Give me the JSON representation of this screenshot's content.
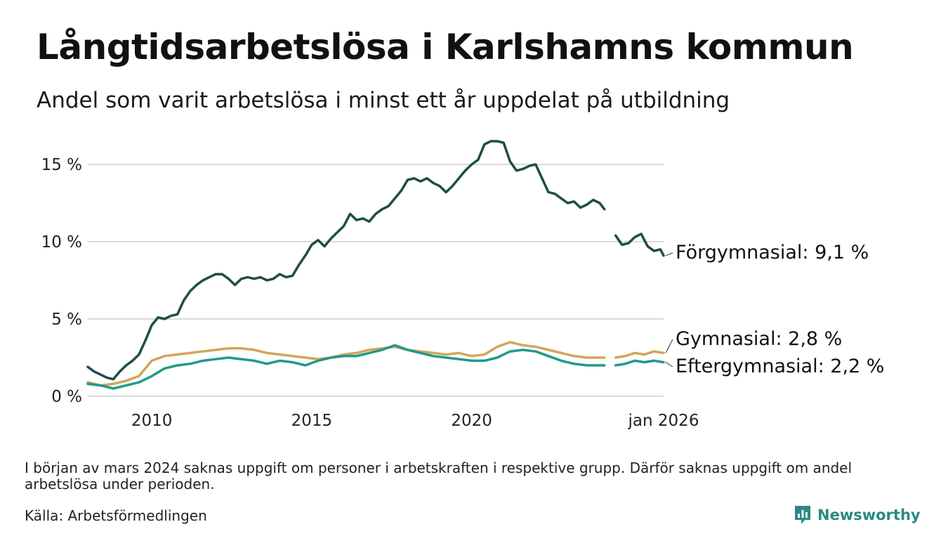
{
  "title": "Långtidsarbetslösa i Karlshamns kommun",
  "subtitle": "Andel som varit arbetslösa i minst ett år uppdelat på utbildning",
  "note": "I början av mars 2024 saknas uppgift om personer i arbetskraften i respektive grupp. Därför saknas uppgift om andel arbetslösa under perioden.",
  "source": "Källa: Arbetsförmedlingen",
  "brand": {
    "name": "Newsworthy",
    "icon": "newsworthy-logo-icon",
    "color": "#2a8a83"
  },
  "chart_data": {
    "type": "line",
    "title": "Långtidsarbetslösa i Karlshamns kommun",
    "xlabel": "",
    "ylabel": "",
    "x_range": [
      2008.0,
      2026.0
    ],
    "ylim": [
      0,
      17
    ],
    "x_ticks": [
      {
        "value": 2010,
        "label": "2010"
      },
      {
        "value": 2015,
        "label": "2015"
      },
      {
        "value": 2020,
        "label": "2020"
      },
      {
        "value": 2026,
        "label": "jan 2026"
      }
    ],
    "y_ticks": [
      {
        "value": 0,
        "label": "0 %"
      },
      {
        "value": 5,
        "label": "5 %"
      },
      {
        "value": 10,
        "label": "10 %"
      },
      {
        "value": 15,
        "label": "15 %"
      }
    ],
    "grid": true,
    "gap": "mars 2024 – juni 2024 (uppgift saknas)",
    "series": [
      {
        "name": "Förgymnasial",
        "end_label": "Förgymnasial: 9,1 %",
        "color": "#1f4d45",
        "segments": [
          {
            "x": [
              2008.0,
              2008.2,
              2008.4,
              2008.6,
              2008.8,
              2009.0,
              2009.2,
              2009.4,
              2009.6,
              2009.8,
              2010.0,
              2010.2,
              2010.4,
              2010.6,
              2010.8,
              2011.0,
              2011.2,
              2011.4,
              2011.6,
              2011.8,
              2012.0,
              2012.2,
              2012.4,
              2012.6,
              2012.8,
              2013.0,
              2013.2,
              2013.4,
              2013.6,
              2013.8,
              2014.0,
              2014.2,
              2014.4,
              2014.6,
              2014.8,
              2015.0,
              2015.2,
              2015.4,
              2015.6,
              2015.8,
              2016.0,
              2016.2,
              2016.4,
              2016.6,
              2016.8,
              2017.0,
              2017.2,
              2017.4,
              2017.6,
              2017.8,
              2018.0,
              2018.2,
              2018.4,
              2018.6,
              2018.8,
              2019.0,
              2019.2,
              2019.4,
              2019.6,
              2019.8,
              2020.0,
              2020.2,
              2020.4,
              2020.6,
              2020.8,
              2021.0,
              2021.2,
              2021.4,
              2021.6,
              2021.8,
              2022.0,
              2022.2,
              2022.4,
              2022.6,
              2022.8,
              2023.0,
              2023.2,
              2023.4,
              2023.6,
              2023.8,
              2024.0,
              2024.15
            ],
            "y": [
              1.9,
              1.6,
              1.4,
              1.2,
              1.1,
              1.6,
              2.0,
              2.3,
              2.7,
              3.6,
              4.6,
              5.1,
              5.0,
              5.2,
              5.3,
              6.2,
              6.8,
              7.2,
              7.5,
              7.7,
              7.9,
              7.9,
              7.6,
              7.2,
              7.6,
              7.7,
              7.6,
              7.7,
              7.5,
              7.6,
              7.9,
              7.7,
              7.8,
              8.5,
              9.1,
              9.8,
              10.1,
              9.7,
              10.2,
              10.6,
              11.0,
              11.8,
              11.4,
              11.5,
              11.3,
              11.8,
              12.1,
              12.3,
              12.8,
              13.3,
              14.0,
              14.1,
              13.9,
              14.1,
              13.8,
              13.6,
              13.2,
              13.6,
              14.1,
              14.6,
              15.0,
              15.3,
              16.3,
              16.5,
              16.5,
              16.4,
              15.2,
              14.6,
              14.7,
              14.9,
              15.0,
              14.1,
              13.2,
              13.1,
              12.8,
              12.5,
              12.6,
              12.2,
              12.4,
              12.7,
              12.5,
              12.1
            ]
          },
          {
            "x": [
              2024.5,
              2024.7,
              2024.9,
              2025.1,
              2025.3,
              2025.5,
              2025.7,
              2025.9,
              2026.0
            ],
            "y": [
              10.4,
              9.8,
              9.9,
              10.3,
              10.5,
              9.7,
              9.4,
              9.5,
              9.1
            ]
          }
        ]
      },
      {
        "name": "Gymnasial",
        "end_label": "Gymnasial: 2,8 %",
        "color": "#d4a45a",
        "segments": [
          {
            "x": [
              2008.0,
              2008.4,
              2008.8,
              2009.2,
              2009.6,
              2010.0,
              2010.4,
              2010.8,
              2011.2,
              2011.6,
              2012.0,
              2012.4,
              2012.8,
              2013.2,
              2013.6,
              2014.0,
              2014.4,
              2014.8,
              2015.2,
              2015.6,
              2016.0,
              2016.4,
              2016.8,
              2017.2,
              2017.6,
              2018.0,
              2018.4,
              2018.8,
              2019.2,
              2019.6,
              2020.0,
              2020.4,
              2020.8,
              2021.2,
              2021.6,
              2022.0,
              2022.4,
              2022.8,
              2023.2,
              2023.6,
              2024.15
            ],
            "y": [
              0.9,
              0.7,
              0.8,
              1.0,
              1.3,
              2.3,
              2.6,
              2.7,
              2.8,
              2.9,
              3.0,
              3.1,
              3.1,
              3.0,
              2.8,
              2.7,
              2.6,
              2.5,
              2.4,
              2.5,
              2.7,
              2.8,
              3.0,
              3.1,
              3.2,
              3.0,
              2.9,
              2.8,
              2.7,
              2.8,
              2.6,
              2.7,
              3.2,
              3.5,
              3.3,
              3.2,
              3.0,
              2.8,
              2.6,
              2.5,
              2.5
            ]
          },
          {
            "x": [
              2024.5,
              2024.8,
              2025.1,
              2025.4,
              2025.7,
              2026.0
            ],
            "y": [
              2.5,
              2.6,
              2.8,
              2.7,
              2.9,
              2.8
            ]
          }
        ]
      },
      {
        "name": "Eftergymnasial",
        "end_label": "Eftergymnasial: 2,2 %",
        "color": "#1f9a8a",
        "segments": [
          {
            "x": [
              2008.0,
              2008.4,
              2008.8,
              2009.2,
              2009.6,
              2010.0,
              2010.4,
              2010.8,
              2011.2,
              2011.6,
              2012.0,
              2012.4,
              2012.8,
              2013.2,
              2013.6,
              2014.0,
              2014.4,
              2014.8,
              2015.2,
              2015.6,
              2016.0,
              2016.4,
              2016.8,
              2017.2,
              2017.6,
              2018.0,
              2018.4,
              2018.8,
              2019.2,
              2019.6,
              2020.0,
              2020.4,
              2020.8,
              2021.2,
              2021.6,
              2022.0,
              2022.4,
              2022.8,
              2023.2,
              2023.6,
              2024.15
            ],
            "y": [
              0.8,
              0.7,
              0.5,
              0.7,
              0.9,
              1.3,
              1.8,
              2.0,
              2.1,
              2.3,
              2.4,
              2.5,
              2.4,
              2.3,
              2.1,
              2.3,
              2.2,
              2.0,
              2.3,
              2.5,
              2.6,
              2.6,
              2.8,
              3.0,
              3.3,
              3.0,
              2.8,
              2.6,
              2.5,
              2.4,
              2.3,
              2.3,
              2.5,
              2.9,
              3.0,
              2.9,
              2.6,
              2.3,
              2.1,
              2.0,
              2.0
            ]
          },
          {
            "x": [
              2024.5,
              2024.8,
              2025.1,
              2025.4,
              2025.7,
              2026.0
            ],
            "y": [
              2.0,
              2.1,
              2.3,
              2.2,
              2.3,
              2.2
            ]
          }
        ]
      }
    ]
  }
}
